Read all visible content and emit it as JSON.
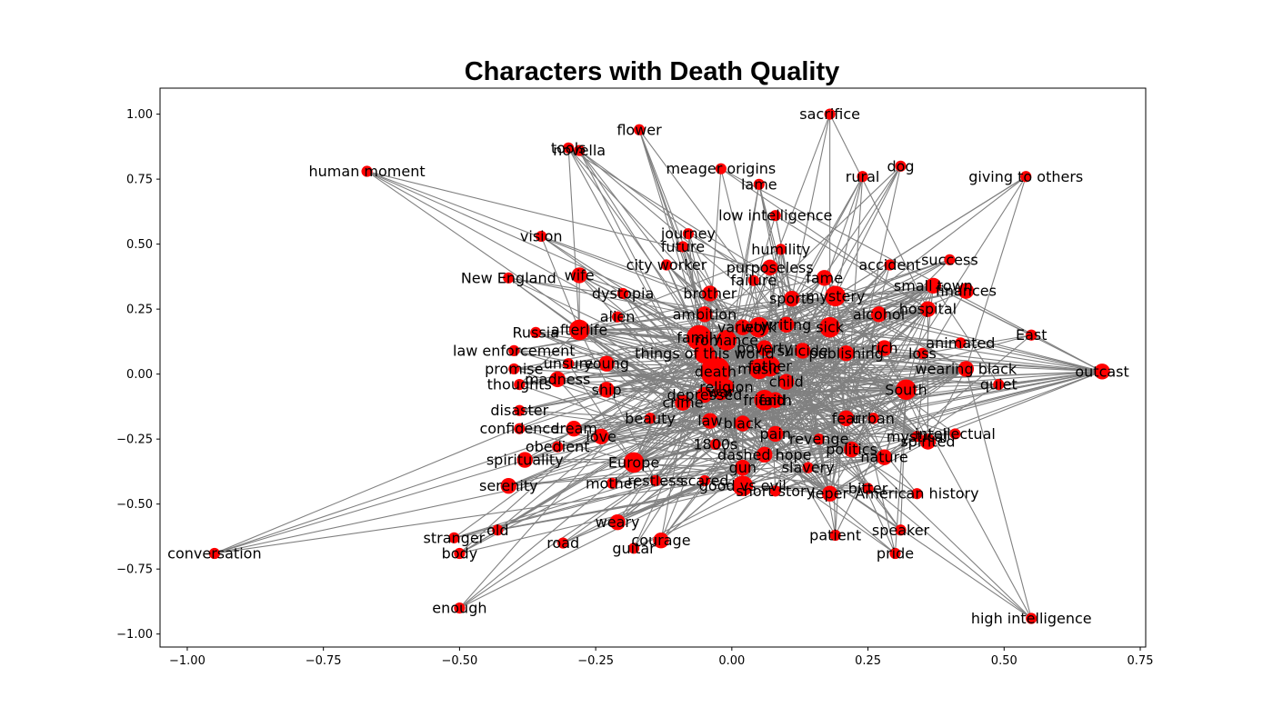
{
  "chart_data": {
    "type": "network",
    "title": "Characters with Death Quality",
    "xlim": [
      -1.05,
      0.76
    ],
    "ylim": [
      -1.05,
      1.1
    ],
    "xticks": [
      {
        "value": -1.0,
        "label": "−1.00"
      },
      {
        "value": -0.75,
        "label": "−0.75"
      },
      {
        "value": -0.5,
        "label": "−0.50"
      },
      {
        "value": -0.25,
        "label": "−0.25"
      },
      {
        "value": 0.0,
        "label": "0.00"
      },
      {
        "value": 0.25,
        "label": "0.25"
      },
      {
        "value": 0.5,
        "label": "0.50"
      },
      {
        "value": 0.75,
        "label": "0.75"
      }
    ],
    "yticks": [
      {
        "value": 1.0,
        "label": "1.00"
      },
      {
        "value": 0.75,
        "label": "0.75"
      },
      {
        "value": 0.5,
        "label": "0.50"
      },
      {
        "value": 0.25,
        "label": "0.25"
      },
      {
        "value": 0.0,
        "label": "0.00"
      },
      {
        "value": -0.25,
        "label": "−0.25"
      },
      {
        "value": -0.5,
        "label": "−0.50"
      },
      {
        "value": -0.75,
        "label": "−0.75"
      },
      {
        "value": -1.0,
        "label": "−1.00"
      }
    ],
    "node_color": "#ff0000",
    "edge_color": "#808080",
    "nodes": [
      {
        "label": "death",
        "x": -0.03,
        "y": 0.01,
        "w": 5
      },
      {
        "label": "family",
        "x": -0.06,
        "y": 0.14,
        "w": 4
      },
      {
        "label": "things of this world",
        "x": -0.05,
        "y": 0.08,
        "w": 3
      },
      {
        "label": "romance",
        "x": -0.01,
        "y": 0.13,
        "w": 3
      },
      {
        "label": "father",
        "x": 0.07,
        "y": 0.03,
        "w": 3
      },
      {
        "label": "music",
        "x": 0.05,
        "y": 0.02,
        "w": 3
      },
      {
        "label": "friend",
        "x": 0.06,
        "y": -0.1,
        "w": 3
      },
      {
        "label": "faith",
        "x": 0.08,
        "y": -0.1,
        "w": 2
      },
      {
        "label": "religion",
        "x": -0.01,
        "y": -0.05,
        "w": 2
      },
      {
        "label": "work",
        "x": 0.05,
        "y": 0.18,
        "w": 3
      },
      {
        "label": "variety",
        "x": 0.02,
        "y": 0.18,
        "w": 2
      },
      {
        "label": "writing",
        "x": 0.1,
        "y": 0.19,
        "w": 2
      },
      {
        "label": "sick",
        "x": 0.18,
        "y": 0.18,
        "w": 3
      },
      {
        "label": "poverty",
        "x": 0.06,
        "y": 0.1,
        "w": 2
      },
      {
        "label": "suicide",
        "x": 0.13,
        "y": 0.09,
        "w": 2
      },
      {
        "label": "publishing",
        "x": 0.21,
        "y": 0.08,
        "w": 2
      },
      {
        "label": "child",
        "x": 0.1,
        "y": -0.03,
        "w": 2
      },
      {
        "label": "war",
        "x": -0.02,
        "y": -0.07,
        "w": 2
      },
      {
        "label": "depressed",
        "x": -0.05,
        "y": -0.08,
        "w": 2
      },
      {
        "label": "crime",
        "x": -0.09,
        "y": -0.11,
        "w": 2
      },
      {
        "label": "law",
        "x": -0.04,
        "y": -0.18,
        "w": 2
      },
      {
        "label": "black",
        "x": 0.02,
        "y": -0.19,
        "w": 2
      },
      {
        "label": "pain",
        "x": 0.08,
        "y": -0.23,
        "w": 2
      },
      {
        "label": "revenge",
        "x": 0.16,
        "y": -0.25,
        "w": 1
      },
      {
        "label": "1800s",
        "x": -0.03,
        "y": -0.27,
        "w": 1
      },
      {
        "label": "dashed hope",
        "x": 0.06,
        "y": -0.31,
        "w": 2
      },
      {
        "label": "gun",
        "x": 0.02,
        "y": -0.36,
        "w": 2
      },
      {
        "label": "slavery",
        "x": 0.14,
        "y": -0.36,
        "w": 1
      },
      {
        "label": "politics",
        "x": 0.22,
        "y": -0.29,
        "w": 2
      },
      {
        "label": "nature",
        "x": 0.28,
        "y": -0.32,
        "w": 2
      },
      {
        "label": "good vs evil",
        "x": 0.02,
        "y": -0.43,
        "w": 3
      },
      {
        "label": "short story",
        "x": 0.08,
        "y": -0.45,
        "w": 1
      },
      {
        "label": "leper",
        "x": 0.18,
        "y": -0.46,
        "w": 2
      },
      {
        "label": "bitter",
        "x": 0.25,
        "y": -0.44,
        "w": 1
      },
      {
        "label": "American history",
        "x": 0.34,
        "y": -0.46,
        "w": 1
      },
      {
        "label": "fear",
        "x": 0.21,
        "y": -0.17,
        "w": 2
      },
      {
        "label": "urban",
        "x": 0.26,
        "y": -0.17,
        "w": 1
      },
      {
        "label": "South",
        "x": 0.32,
        "y": -0.06,
        "w": 3
      },
      {
        "label": "mystical",
        "x": 0.34,
        "y": -0.24,
        "w": 1
      },
      {
        "label": "spirited",
        "x": 0.36,
        "y": -0.26,
        "w": 2
      },
      {
        "label": "intellectual",
        "x": 0.41,
        "y": -0.23,
        "w": 1
      },
      {
        "label": "wearing black",
        "x": 0.43,
        "y": 0.02,
        "w": 2
      },
      {
        "label": "quiet",
        "x": 0.49,
        "y": -0.04,
        "w": 1
      },
      {
        "label": "outcast",
        "x": 0.68,
        "y": 0.01,
        "w": 2
      },
      {
        "label": "loss",
        "x": 0.35,
        "y": 0.08,
        "w": 1
      },
      {
        "label": "rich",
        "x": 0.28,
        "y": 0.1,
        "w": 2
      },
      {
        "label": "animated",
        "x": 0.42,
        "y": 0.12,
        "w": 1
      },
      {
        "label": "East",
        "x": 0.55,
        "y": 0.15,
        "w": 1
      },
      {
        "label": "hospital",
        "x": 0.36,
        "y": 0.25,
        "w": 2
      },
      {
        "label": "small town",
        "x": 0.37,
        "y": 0.34,
        "w": 2
      },
      {
        "label": "finances",
        "x": 0.43,
        "y": 0.32,
        "w": 2
      },
      {
        "label": "alcohol",
        "x": 0.27,
        "y": 0.23,
        "w": 2
      },
      {
        "label": "success",
        "x": 0.4,
        "y": 0.44,
        "w": 1
      },
      {
        "label": "accident",
        "x": 0.29,
        "y": 0.42,
        "w": 1
      },
      {
        "label": "fame",
        "x": 0.17,
        "y": 0.37,
        "w": 2
      },
      {
        "label": "mystery",
        "x": 0.19,
        "y": 0.3,
        "w": 3
      },
      {
        "label": "sports",
        "x": 0.11,
        "y": 0.29,
        "w": 2
      },
      {
        "label": "failure",
        "x": 0.04,
        "y": 0.36,
        "w": 1
      },
      {
        "label": "purposeless",
        "x": 0.07,
        "y": 0.41,
        "w": 2
      },
      {
        "label": "humility",
        "x": 0.09,
        "y": 0.48,
        "w": 1
      },
      {
        "label": "low intelligence",
        "x": 0.08,
        "y": 0.61,
        "w": 1
      },
      {
        "label": "lame",
        "x": 0.05,
        "y": 0.73,
        "w": 1
      },
      {
        "label": "meager origins",
        "x": -0.02,
        "y": 0.79,
        "w": 1
      },
      {
        "label": "rural",
        "x": 0.24,
        "y": 0.76,
        "w": 1
      },
      {
        "label": "dog",
        "x": 0.31,
        "y": 0.8,
        "w": 1
      },
      {
        "label": "giving to others",
        "x": 0.54,
        "y": 0.76,
        "w": 1
      },
      {
        "label": "sacrifice",
        "x": 0.18,
        "y": 1.0,
        "w": 1
      },
      {
        "label": "flower",
        "x": -0.17,
        "y": 0.94,
        "w": 1
      },
      {
        "label": "tools",
        "x": -0.3,
        "y": 0.87,
        "w": 1
      },
      {
        "label": "novella",
        "x": -0.28,
        "y": 0.86,
        "w": 1
      },
      {
        "label": "human moment",
        "x": -0.67,
        "y": 0.78,
        "w": 1
      },
      {
        "label": "journey",
        "x": -0.08,
        "y": 0.54,
        "w": 1
      },
      {
        "label": "future",
        "x": -0.09,
        "y": 0.49,
        "w": 1
      },
      {
        "label": "city worker",
        "x": -0.12,
        "y": 0.42,
        "w": 1
      },
      {
        "label": "brother",
        "x": -0.04,
        "y": 0.31,
        "w": 2
      },
      {
        "label": "ambition",
        "x": -0.05,
        "y": 0.23,
        "w": 2
      },
      {
        "label": "vision",
        "x": -0.35,
        "y": 0.53,
        "w": 1
      },
      {
        "label": "New England",
        "x": -0.41,
        "y": 0.37,
        "w": 1
      },
      {
        "label": "wife",
        "x": -0.28,
        "y": 0.38,
        "w": 2
      },
      {
        "label": "dystopia",
        "x": -0.2,
        "y": 0.31,
        "w": 1
      },
      {
        "label": "alien",
        "x": -0.21,
        "y": 0.22,
        "w": 1
      },
      {
        "label": "Russia",
        "x": -0.36,
        "y": 0.16,
        "w": 1
      },
      {
        "label": "afterlife",
        "x": -0.28,
        "y": 0.17,
        "w": 3
      },
      {
        "label": "law enforcement",
        "x": -0.4,
        "y": 0.09,
        "w": 1
      },
      {
        "label": "unsure",
        "x": -0.3,
        "y": 0.04,
        "w": 1
      },
      {
        "label": "young",
        "x": -0.23,
        "y": 0.04,
        "w": 2
      },
      {
        "label": "promise",
        "x": -0.4,
        "y": 0.02,
        "w": 1
      },
      {
        "label": "madness",
        "x": -0.32,
        "y": -0.02,
        "w": 2
      },
      {
        "label": "thoughts",
        "x": -0.39,
        "y": -0.04,
        "w": 1
      },
      {
        "label": "ship",
        "x": -0.23,
        "y": -0.06,
        "w": 2
      },
      {
        "label": "disaster",
        "x": -0.39,
        "y": -0.14,
        "w": 1
      },
      {
        "label": "beauty",
        "x": -0.15,
        "y": -0.17,
        "w": 1
      },
      {
        "label": "confidence",
        "x": -0.39,
        "y": -0.21,
        "w": 1
      },
      {
        "label": "dream",
        "x": -0.29,
        "y": -0.21,
        "w": 2
      },
      {
        "label": "love",
        "x": -0.24,
        "y": -0.24,
        "w": 2
      },
      {
        "label": "obedient",
        "x": -0.32,
        "y": -0.28,
        "w": 1
      },
      {
        "label": "spirituality",
        "x": -0.38,
        "y": -0.33,
        "w": 2
      },
      {
        "label": "Europe",
        "x": -0.18,
        "y": -0.34,
        "w": 3
      },
      {
        "label": "mother",
        "x": -0.22,
        "y": -0.42,
        "w": 1
      },
      {
        "label": "restless",
        "x": -0.14,
        "y": -0.41,
        "w": 1
      },
      {
        "label": "scared",
        "x": -0.05,
        "y": -0.41,
        "w": 1
      },
      {
        "label": "serenity",
        "x": -0.41,
        "y": -0.43,
        "w": 2
      },
      {
        "label": "old",
        "x": -0.43,
        "y": -0.6,
        "w": 1
      },
      {
        "label": "weary",
        "x": -0.21,
        "y": -0.57,
        "w": 2
      },
      {
        "label": "courage",
        "x": -0.13,
        "y": -0.64,
        "w": 2
      },
      {
        "label": "stranger",
        "x": -0.51,
        "y": -0.63,
        "w": 1
      },
      {
        "label": "road",
        "x": -0.31,
        "y": -0.65,
        "w": 1
      },
      {
        "label": "guitar",
        "x": -0.18,
        "y": -0.67,
        "w": 1
      },
      {
        "label": "body",
        "x": -0.5,
        "y": -0.69,
        "w": 1
      },
      {
        "label": "conversation",
        "x": -0.95,
        "y": -0.69,
        "w": 1
      },
      {
        "label": "enough",
        "x": -0.5,
        "y": -0.9,
        "w": 1
      },
      {
        "label": "patient",
        "x": 0.19,
        "y": -0.62,
        "w": 1
      },
      {
        "label": "speaker",
        "x": 0.31,
        "y": -0.6,
        "w": 1
      },
      {
        "label": "pride",
        "x": 0.3,
        "y": -0.69,
        "w": 1
      },
      {
        "label": "high intelligence",
        "x": 0.55,
        "y": -0.94,
        "w": 1
      }
    ]
  }
}
